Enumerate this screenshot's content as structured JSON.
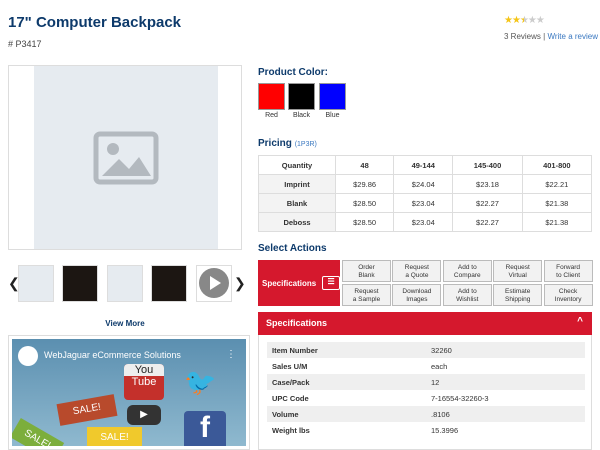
{
  "product": {
    "title": "17\" Computer Backpack",
    "sku": "# P3417",
    "rating": 2.5,
    "reviews": "3 Reviews",
    "separator": "|",
    "write_review": "Write a review"
  },
  "gallery": {
    "view_more": "View More",
    "prev_icon": "chevron-left",
    "next_icon": "chevron-right"
  },
  "video": {
    "title": "WebJaguar eCommerce Solutions",
    "youtube_top": "You",
    "youtube_bottom": "Tube",
    "sale": "SALE!",
    "facebook": "f"
  },
  "colors": {
    "label": "Product Color:",
    "options": [
      {
        "name": "Red",
        "hex": "#ff0000"
      },
      {
        "name": "Black",
        "hex": "#000000"
      },
      {
        "name": "Blue",
        "hex": "#0000ff"
      }
    ]
  },
  "pricing": {
    "label": "Pricing",
    "code": "(1P3R)",
    "headers": [
      "Quantity",
      "48",
      "49-144",
      "145-400",
      "401-800"
    ],
    "rows": [
      [
        "Imprint",
        "$29.86",
        "$24.04",
        "$23.18",
        "$22.21"
      ],
      [
        "Blank",
        "$28.50",
        "$23.04",
        "$22.27",
        "$21.38"
      ],
      [
        "Deboss",
        "$28.50",
        "$23.04",
        "$22.27",
        "$21.38"
      ]
    ]
  },
  "actions": {
    "label": "Select Actions",
    "primary": "Specifications",
    "buttons": [
      [
        "Order",
        "Blank"
      ],
      [
        "Request",
        "a Quote"
      ],
      [
        "Add to",
        "Compare"
      ],
      [
        "Request",
        "Virtual"
      ],
      [
        "Forward",
        "to Client"
      ],
      [
        "Request",
        "a Sample"
      ],
      [
        "Download",
        "Images"
      ],
      [
        "Add to",
        "Wishlist"
      ],
      [
        "Estimate",
        "Shipping"
      ],
      [
        "Check",
        "Inventory"
      ]
    ]
  },
  "specs": {
    "title": "Specifications",
    "rows": [
      [
        "Item Number",
        "32260"
      ],
      [
        "Sales U/M",
        "each"
      ],
      [
        "Case/Pack",
        "12"
      ],
      [
        "UPC Code",
        "7-16554-32260-3"
      ],
      [
        "Volume",
        ".8106"
      ],
      [
        "Weight lbs",
        "15.3996"
      ]
    ]
  }
}
